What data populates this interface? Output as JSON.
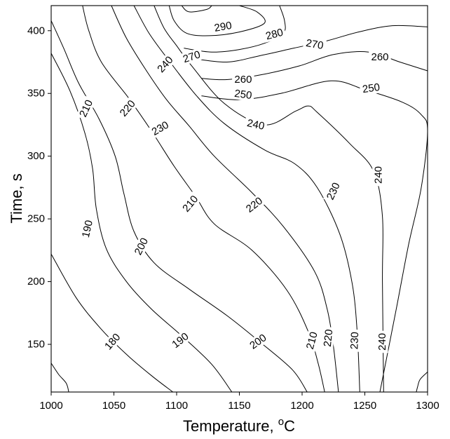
{
  "chart_data": {
    "type": "contour",
    "title": "",
    "xlabel": "Temperature, ",
    "xlabel_superscript": "o",
    "xlabel_unit": "C",
    "ylabel": "Time, s",
    "xlim": [
      1000,
      1300
    ],
    "ylim": [
      112,
      420
    ],
    "xticks": [
      "1000",
      "1050",
      "1100",
      "1150",
      "1200",
      "1250",
      "1300"
    ],
    "yticks": [
      "150",
      "200",
      "250",
      "300",
      "350",
      "400"
    ],
    "grid": false,
    "legend": "none",
    "line_color": "#000000",
    "contours": [
      {
        "level": "180",
        "points": [
          [
            1000,
            222
          ],
          [
            1020,
            187
          ],
          [
            1040,
            162
          ],
          [
            1060,
            142
          ],
          [
            1080,
            125
          ],
          [
            1097,
            112
          ]
        ],
        "labels": [
          [
            1049,
            152,
            -49
          ]
        ]
      },
      {
        "level": "190",
        "points": [
          [
            1000,
            382
          ],
          [
            1015,
            352
          ],
          [
            1027,
            318
          ],
          [
            1033,
            290
          ],
          [
            1036,
            258
          ],
          [
            1044,
            226
          ],
          [
            1060,
            200
          ],
          [
            1080,
            178
          ],
          [
            1105,
            156
          ],
          [
            1128,
            134
          ],
          [
            1144,
            112
          ]
        ],
        "labels": [
          [
            1029,
            242,
            -77
          ],
          [
            1103,
            153,
            -38
          ]
        ]
      },
      {
        "level": "200",
        "points": [
          [
            1000,
            408
          ],
          [
            1010,
            386
          ],
          [
            1022,
            358
          ],
          [
            1038,
            330
          ],
          [
            1051,
            300
          ],
          [
            1058,
            270
          ],
          [
            1066,
            240
          ],
          [
            1082,
            215
          ],
          [
            1110,
            194
          ],
          [
            1140,
            173
          ],
          [
            1165,
            153
          ],
          [
            1192,
            130
          ],
          [
            1204,
            112
          ]
        ],
        "labels": [
          [
            1072,
            228,
            -63
          ],
          [
            1165,
            152,
            -36
          ]
        ]
      },
      {
        "level": "210",
        "points": [
          [
            1025,
            420
          ],
          [
            1030,
            400
          ],
          [
            1040,
            375
          ],
          [
            1062,
            346
          ],
          [
            1080,
            320
          ],
          [
            1098,
            292
          ],
          [
            1115,
            268
          ],
          [
            1130,
            246
          ],
          [
            1160,
            225
          ],
          [
            1188,
            193
          ],
          [
            1205,
            160
          ],
          [
            1213,
            134
          ],
          [
            1218,
            112
          ]
        ],
        "labels": [
          [
            1028,
            338,
            -65
          ],
          [
            1111,
            262,
            -50
          ],
          [
            1208,
            153,
            -75
          ]
        ]
      },
      {
        "level": "220",
        "points": [
          [
            1048,
            420
          ],
          [
            1060,
            394
          ],
          [
            1076,
            368
          ],
          [
            1092,
            345
          ],
          [
            1110,
            324
          ],
          [
            1130,
            300
          ],
          [
            1160,
            271
          ],
          [
            1185,
            244
          ],
          [
            1210,
            208
          ],
          [
            1220,
            178
          ],
          [
            1225,
            148
          ],
          [
            1229,
            112
          ]
        ],
        "labels": [
          [
            1061,
            338,
            -50
          ],
          [
            1162,
            261,
            -38
          ],
          [
            1221,
            155,
            -84
          ]
        ]
      },
      {
        "level": "230",
        "points": [
          [
            1066,
            420
          ],
          [
            1078,
            398
          ],
          [
            1094,
            376
          ],
          [
            1116,
            348
          ],
          [
            1138,
            326
          ],
          [
            1170,
            305
          ],
          [
            1194,
            294
          ],
          [
            1212,
            275
          ],
          [
            1230,
            238
          ],
          [
            1240,
            198
          ],
          [
            1244,
            158
          ],
          [
            1246,
            112
          ]
        ],
        "labels": [
          [
            1087,
            322,
            -30
          ],
          [
            1225,
            272,
            -65
          ],
          [
            1242,
            153,
            -88
          ]
        ]
      },
      {
        "level": "240",
        "points": [
          [
            1082,
            420
          ],
          [
            1090,
            402
          ],
          [
            1100,
            388
          ],
          [
            1112,
            372
          ],
          [
            1138,
            342
          ],
          [
            1170,
            325
          ],
          [
            1195,
            336
          ],
          [
            1205,
            340
          ],
          [
            1212,
            335
          ],
          [
            1238,
            310
          ],
          [
            1257,
            288
          ],
          [
            1264,
            252
          ],
          [
            1264,
            200
          ],
          [
            1265,
            112
          ]
        ],
        "labels": [
          [
            1091,
            373,
            -48
          ],
          [
            1163,
            325,
            12
          ],
          [
            1261,
            285,
            -90
          ],
          [
            1264,
            152,
            -90
          ]
        ]
      },
      {
        "level": "250",
        "points": [
          [
            1262,
            112
          ],
          [
            1275,
            178
          ],
          [
            1285,
            230
          ],
          [
            1295,
            275
          ],
          [
            1300,
            320
          ],
          [
            1295,
            333
          ],
          [
            1280,
            343
          ],
          [
            1250,
            353
          ],
          [
            1223,
            360
          ],
          [
            1183,
            350
          ],
          [
            1150,
            345
          ],
          [
            1120,
            348
          ]
        ],
        "labels": [
          [
            1255,
            354,
            -8
          ],
          [
            1153,
            349,
            8
          ]
        ]
      },
      {
        "level": "260",
        "points": [
          [
            1300,
            368
          ],
          [
            1278,
            375
          ],
          [
            1253,
            383
          ],
          [
            1225,
            381
          ],
          [
            1198,
            372
          ],
          [
            1168,
            365
          ],
          [
            1140,
            361
          ],
          [
            1120,
            362
          ]
        ],
        "labels": [
          [
            1262,
            379,
            0
          ],
          [
            1153,
            361,
            0
          ]
        ]
      },
      {
        "level": "270",
        "points": [
          [
            1300,
            403
          ],
          [
            1272,
            404
          ],
          [
            1245,
            399
          ],
          [
            1220,
            392
          ],
          [
            1193,
            386
          ],
          [
            1166,
            380
          ],
          [
            1140,
            375
          ],
          [
            1112,
            378
          ]
        ],
        "labels": [
          [
            1210,
            389,
            10
          ],
          [
            1112,
            379,
            -18
          ]
        ]
      },
      {
        "level": "280",
        "points": [
          [
            1182,
            420
          ],
          [
            1186,
            408
          ],
          [
            1185,
            398
          ],
          [
            1170,
            390
          ],
          [
            1150,
            385
          ],
          [
            1128,
            383
          ],
          [
            1106,
            386
          ]
        ],
        "labels": [
          [
            1178,
            397,
            -15
          ]
        ]
      },
      {
        "level": "290",
        "points": [
          [
            1150,
            420
          ],
          [
            1164,
            415
          ],
          [
            1170,
            406
          ],
          [
            1150,
            399
          ],
          [
            1126,
            396
          ],
          [
            1108,
            398
          ],
          [
            1098,
            408
          ],
          [
            1094,
            420
          ]
        ],
        "labels": [
          [
            1137,
            403,
            -10
          ]
        ]
      },
      {
        "level": "",
        "points": [
          [
            1104,
            420
          ],
          [
            1110,
            415
          ],
          [
            1124,
            417
          ],
          [
            1128,
            420
          ]
        ],
        "labels": []
      },
      {
        "level": "",
        "points": [
          [
            1000,
            135
          ],
          [
            1006,
            126
          ],
          [
            1012,
            119
          ],
          [
            1014,
            112
          ]
        ],
        "labels": []
      },
      {
        "level": "",
        "points": [
          [
            1300,
            128
          ],
          [
            1294,
            122
          ],
          [
            1292,
            116
          ],
          [
            1291,
            112
          ]
        ],
        "labels": []
      }
    ]
  }
}
